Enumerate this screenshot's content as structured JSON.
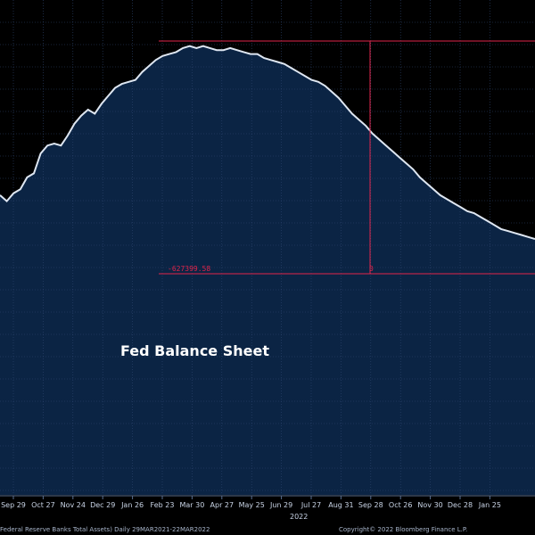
{
  "chart_data": {
    "type": "area",
    "title": "Fed Balance Sheet",
    "series_name": "Federal Reserve Banks Total Assets",
    "x_tick_labels": [
      "Sep 29",
      "Oct 27",
      "Nov 24",
      "Dec 29",
      "Jan 26",
      "Feb 23",
      "Mar 30",
      "Apr 27",
      "May 25",
      "Jun 29",
      "Jul 27",
      "Aug 31",
      "Sep 28",
      "Oct 26",
      "Nov 30",
      "Dec 28",
      "Jan 25"
    ],
    "year_label": "2022",
    "annotation_value": "-627399.58",
    "annotation_zero": "0",
    "footer": {
      "left": "Federal Reserve Banks Total Assets)  Daily 29MAR2021-22MAR2022",
      "right": "Copyright© 2022 Bloomberg Finance L.P."
    },
    "profile": [
      0.22,
      0.19,
      0.23,
      0.25,
      0.31,
      0.33,
      0.43,
      0.47,
      0.48,
      0.47,
      0.52,
      0.58,
      0.62,
      0.65,
      0.63,
      0.68,
      0.72,
      0.76,
      0.78,
      0.79,
      0.8,
      0.84,
      0.87,
      0.9,
      0.92,
      0.93,
      0.94,
      0.96,
      0.97,
      0.96,
      0.97,
      0.96,
      0.95,
      0.95,
      0.96,
      0.95,
      0.94,
      0.93,
      0.93,
      0.91,
      0.9,
      0.89,
      0.88,
      0.86,
      0.84,
      0.82,
      0.8,
      0.79,
      0.77,
      0.74,
      0.71,
      0.67,
      0.63,
      0.6,
      0.57,
      0.53,
      0.5,
      0.47,
      0.44,
      0.41,
      0.38,
      0.35,
      0.31,
      0.28,
      0.25,
      0.22,
      0.2,
      0.18,
      0.16,
      0.14,
      0.13,
      0.11,
      0.09,
      0.07,
      0.05,
      0.04,
      0.03,
      0.02,
      0.01,
      0.0
    ],
    "line_color": "#dfe7f2",
    "fill_color": "#0b2444",
    "grid_color": "#2e4670",
    "annotation_color": "#e0244a",
    "background": "#000000"
  }
}
